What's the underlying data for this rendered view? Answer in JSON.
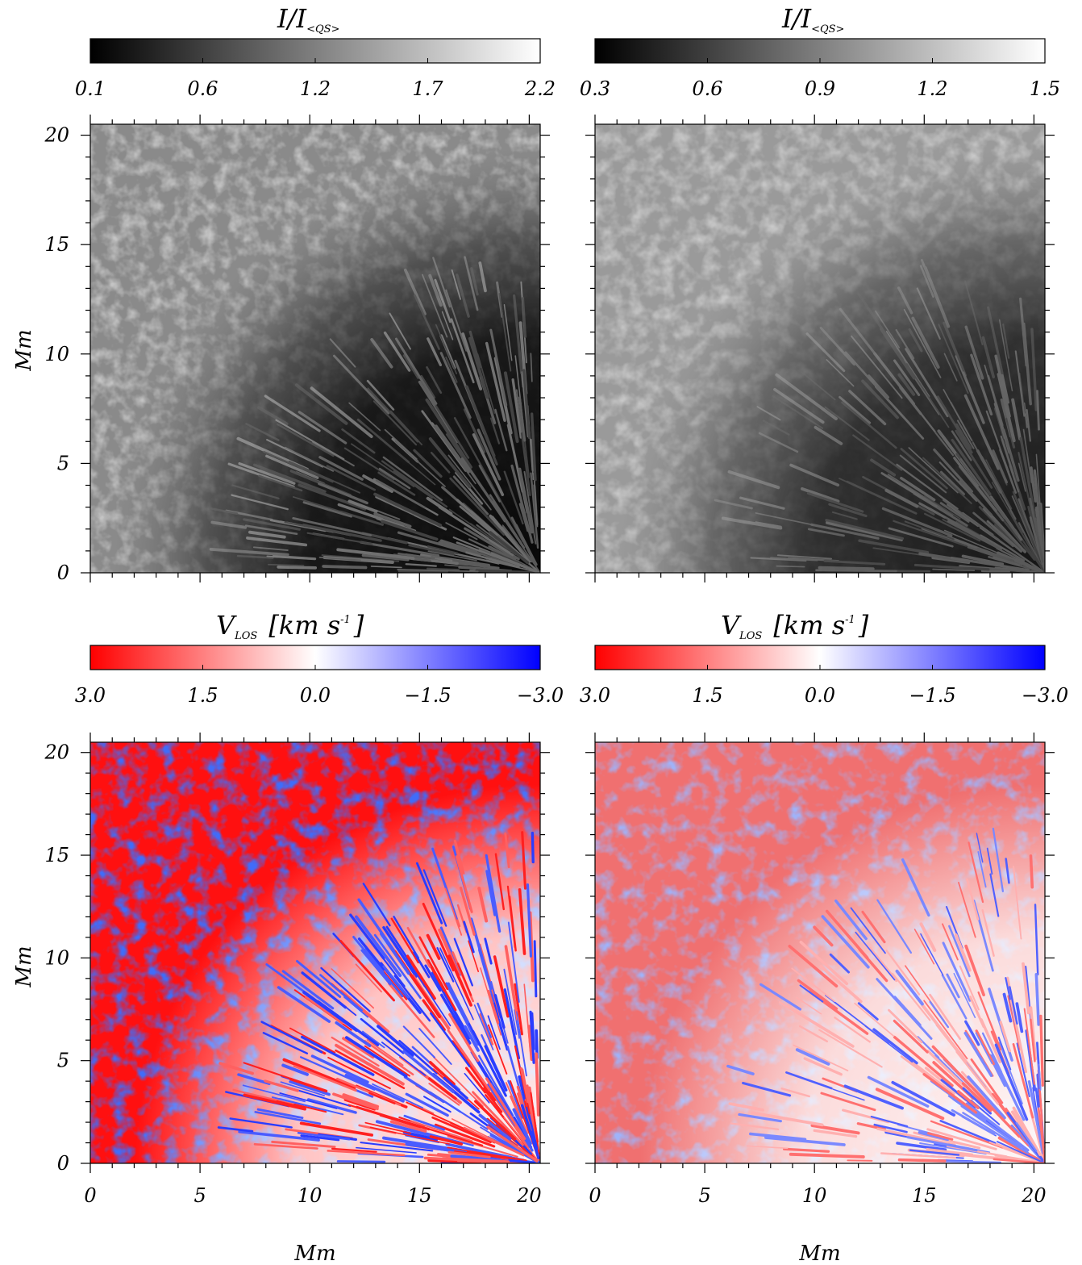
{
  "figure": {
    "panels": [
      {
        "id": "intensity-left",
        "colorbar": {
          "title_main": "I/I",
          "title_sub": "<QS>",
          "tick_labels": [
            "0.1",
            "0.6",
            "1.2",
            "1.7",
            "2.2"
          ],
          "colormap": "grayscale",
          "colors": [
            "#000000",
            "#ffffff"
          ]
        },
        "ylabel": "Mm",
        "yticks": [
          "0",
          "5",
          "10",
          "15",
          "20"
        ],
        "xticks": [],
        "xlabel": ""
      },
      {
        "id": "intensity-right",
        "colorbar": {
          "title_main": "I/I",
          "title_sub": "<QS>",
          "tick_labels": [
            "0.3",
            "0.6",
            "0.9",
            "1.2",
            "1.5"
          ],
          "colormap": "grayscale",
          "colors": [
            "#000000",
            "#ffffff"
          ]
        },
        "ylabel": "",
        "yticks": [],
        "xticks": [],
        "xlabel": ""
      },
      {
        "id": "velocity-left",
        "colorbar": {
          "title_main": "V",
          "title_sub": "LOS",
          "title_unit": "[km s",
          "title_exp": "-1",
          "title_close": "]",
          "tick_labels": [
            "3.0",
            "1.5",
            "0.0",
            "−1.5",
            "−3.0"
          ],
          "colormap": "red-white-blue",
          "colors": [
            "#ff0000",
            "#ffffff",
            "#0000ff"
          ]
        },
        "ylabel": "Mm",
        "yticks": [
          "0",
          "5",
          "10",
          "15",
          "20"
        ],
        "xticks": [
          "0",
          "5",
          "10",
          "15",
          "20"
        ],
        "xlabel": "Mm"
      },
      {
        "id": "velocity-right",
        "colorbar": {
          "title_main": "V",
          "title_sub": "LOS",
          "title_unit": "[km s",
          "title_exp": "-1",
          "title_close": "]",
          "tick_labels": [
            "3.0",
            "1.5",
            "0.0",
            "−1.5",
            "−3.0"
          ],
          "colormap": "red-white-blue",
          "colors": [
            "#ff0000",
            "#ffffff",
            "#0000ff"
          ]
        },
        "ylabel": "",
        "yticks": [],
        "xticks": [
          "0",
          "5",
          "10",
          "15",
          "20"
        ],
        "xlabel": "Mm"
      }
    ]
  }
}
